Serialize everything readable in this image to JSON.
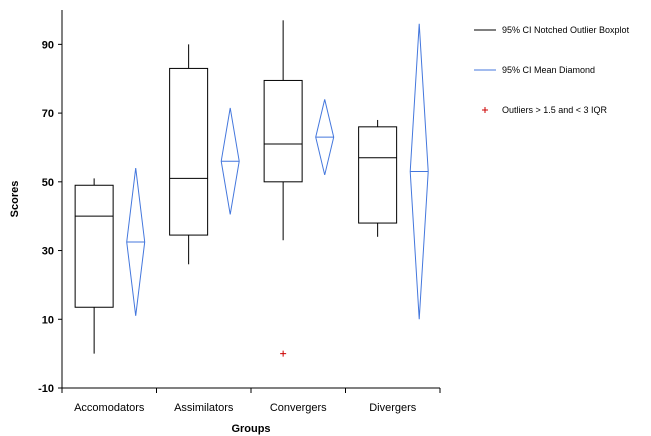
{
  "chart_data": {
    "type": "boxplot",
    "xlabel": "Groups",
    "ylabel": "Scores",
    "ylim": [
      -10,
      100
    ],
    "yticks": [
      "-10",
      "10",
      "30",
      "50",
      "70",
      "90"
    ],
    "yticks_values": [
      -10,
      10,
      30,
      50,
      70,
      90
    ],
    "categories": [
      "Accomodators",
      "Assimilators",
      "Convergers",
      "Divergers"
    ],
    "boxplots": [
      {
        "category": "Accomodators",
        "min": 0,
        "q1": 13.5,
        "median": 40,
        "q3": 49,
        "max": 51
      },
      {
        "category": "Assimilators",
        "min": 26,
        "q1": 34.5,
        "median": 51,
        "q3": 83,
        "max": 90
      },
      {
        "category": "Convergers",
        "min": 33,
        "q1": 50,
        "median": 61,
        "q3": 79.5,
        "max": 97
      },
      {
        "category": "Divergers",
        "min": 34,
        "q1": 38,
        "median": 57,
        "q3": 66,
        "max": 68
      }
    ],
    "mean_diamonds": [
      {
        "category": "Accomodators",
        "mean": 32.5,
        "lower": 11,
        "upper": 54
      },
      {
        "category": "Assimilators",
        "mean": 56,
        "lower": 40.5,
        "upper": 71.5
      },
      {
        "category": "Convergers",
        "mean": 63,
        "lower": 52,
        "upper": 74
      },
      {
        "category": "Divergers",
        "mean": 53,
        "lower": 10,
        "upper": 96
      }
    ],
    "outliers": [
      {
        "category": "Convergers",
        "value": 0
      }
    ],
    "legend": [
      {
        "label": "95% CI Notched Outlier Boxplot",
        "color": "#000000",
        "kind": "line"
      },
      {
        "label": "95% CI Mean Diamond",
        "color": "#4477dd",
        "kind": "line"
      },
      {
        "label": "Outliers > 1.5 and < 3 IQR",
        "color": "#cc0000",
        "kind": "plus"
      }
    ],
    "legend_position": "right",
    "grid": false,
    "colors": {
      "box": "#000000",
      "diamond": "#4477dd",
      "outlier": "#cc0000"
    }
  }
}
